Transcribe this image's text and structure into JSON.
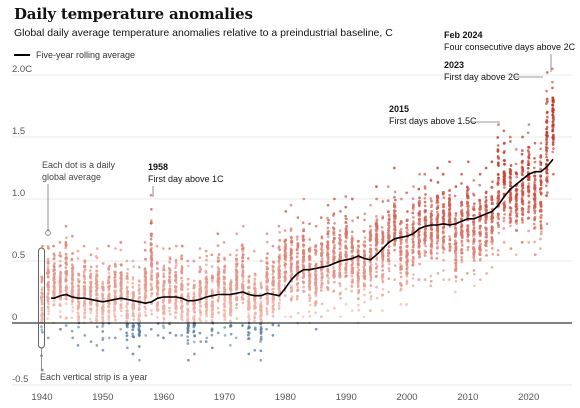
{
  "title": "Daily temperature anomalies",
  "subtitle": "Global daily average temperature anomalies relative to a preindustrial baseline, C",
  "legend": {
    "line_label": "Five-year rolling average",
    "line_color": "#000000"
  },
  "colors": {
    "warm": "#c0392b",
    "warm_light": "#f2b9ad",
    "cool": "#5a7fa6",
    "zero_line": "#000000",
    "grid": "#e2e2e2"
  },
  "chart_data": {
    "type": "scatter",
    "x_range": [
      1940,
      2024
    ],
    "ylim": [
      -0.5,
      2.1
    ],
    "y_ticks": [
      -0.5,
      0,
      0.5,
      1.0,
      1.5,
      2.0
    ],
    "y_tick_labels": [
      "-0.5",
      "0",
      "0.5",
      "1.0",
      "1.5",
      "2.0C"
    ],
    "x_ticks": [
      1940,
      1950,
      1960,
      1970,
      1980,
      1990,
      2000,
      2010,
      2020
    ],
    "x_tick_labels": [
      "1940",
      "1950",
      "1960",
      "1970",
      "1980",
      "1990",
      "2000",
      "2010",
      "2020"
    ],
    "grid": true,
    "legend_position": "top-left",
    "yearly_daily_ranges": [
      {
        "year": 1940,
        "min": -0.38,
        "max": 0.62,
        "mean": 0.15
      },
      {
        "year": 1941,
        "min": -0.12,
        "max": 0.75,
        "mean": 0.25
      },
      {
        "year": 1942,
        "min": 0.0,
        "max": 0.62,
        "mean": 0.22
      },
      {
        "year": 1943,
        "min": -0.05,
        "max": 0.65,
        "mean": 0.2
      },
      {
        "year": 1944,
        "min": -0.02,
        "max": 0.78,
        "mean": 0.3
      },
      {
        "year": 1945,
        "min": -0.12,
        "max": 0.7,
        "mean": 0.22
      },
      {
        "year": 1946,
        "min": -0.18,
        "max": 0.58,
        "mean": 0.15
      },
      {
        "year": 1947,
        "min": -0.1,
        "max": 0.62,
        "mean": 0.2
      },
      {
        "year": 1948,
        "min": -0.15,
        "max": 0.55,
        "mean": 0.16
      },
      {
        "year": 1949,
        "min": -0.18,
        "max": 0.6,
        "mean": 0.14
      },
      {
        "year": 1950,
        "min": -0.22,
        "max": 0.48,
        "mean": 0.08
      },
      {
        "year": 1951,
        "min": -0.12,
        "max": 0.62,
        "mean": 0.2
      },
      {
        "year": 1952,
        "min": -0.12,
        "max": 0.6,
        "mean": 0.2
      },
      {
        "year": 1953,
        "min": -0.05,
        "max": 0.65,
        "mean": 0.24
      },
      {
        "year": 1954,
        "min": -0.2,
        "max": 0.5,
        "mean": 0.1
      },
      {
        "year": 1955,
        "min": -0.25,
        "max": 0.5,
        "mean": 0.08
      },
      {
        "year": 1956,
        "min": -0.3,
        "max": 0.45,
        "mean": 0.05
      },
      {
        "year": 1957,
        "min": -0.1,
        "max": 0.65,
        "mean": 0.22
      },
      {
        "year": 1958,
        "min": -0.05,
        "max": 1.03,
        "mean": 0.3
      },
      {
        "year": 1959,
        "min": -0.1,
        "max": 0.62,
        "mean": 0.22
      },
      {
        "year": 1960,
        "min": -0.12,
        "max": 0.6,
        "mean": 0.2
      },
      {
        "year": 1961,
        "min": -0.08,
        "max": 0.6,
        "mean": 0.24
      },
      {
        "year": 1962,
        "min": -0.1,
        "max": 0.62,
        "mean": 0.22
      },
      {
        "year": 1963,
        "min": -0.1,
        "max": 0.62,
        "mean": 0.24
      },
      {
        "year": 1964,
        "min": -0.3,
        "max": 0.5,
        "mean": 0.08
      },
      {
        "year": 1965,
        "min": -0.25,
        "max": 0.5,
        "mean": 0.12
      },
      {
        "year": 1966,
        "min": -0.15,
        "max": 0.6,
        "mean": 0.2
      },
      {
        "year": 1967,
        "min": -0.15,
        "max": 0.58,
        "mean": 0.2
      },
      {
        "year": 1968,
        "min": -0.2,
        "max": 0.55,
        "mean": 0.18
      },
      {
        "year": 1969,
        "min": -0.08,
        "max": 0.72,
        "mean": 0.28
      },
      {
        "year": 1970,
        "min": -0.1,
        "max": 0.65,
        "mean": 0.24
      },
      {
        "year": 1971,
        "min": -0.18,
        "max": 0.55,
        "mean": 0.16
      },
      {
        "year": 1972,
        "min": -0.12,
        "max": 0.72,
        "mean": 0.24
      },
      {
        "year": 1973,
        "min": -0.02,
        "max": 0.78,
        "mean": 0.32
      },
      {
        "year": 1974,
        "min": -0.25,
        "max": 0.52,
        "mean": 0.14
      },
      {
        "year": 1975,
        "min": -0.22,
        "max": 0.58,
        "mean": 0.16
      },
      {
        "year": 1976,
        "min": -0.3,
        "max": 0.5,
        "mean": 0.1
      },
      {
        "year": 1977,
        "min": -0.05,
        "max": 0.72,
        "mean": 0.32
      },
      {
        "year": 1978,
        "min": -0.1,
        "max": 0.62,
        "mean": 0.26
      },
      {
        "year": 1979,
        "min": -0.02,
        "max": 0.78,
        "mean": 0.34
      },
      {
        "year": 1980,
        "min": 0.05,
        "max": 0.9,
        "mean": 0.42
      },
      {
        "year": 1981,
        "min": 0.05,
        "max": 0.95,
        "mean": 0.45
      },
      {
        "year": 1982,
        "min": 0.0,
        "max": 0.85,
        "mean": 0.36
      },
      {
        "year": 1983,
        "min": 0.05,
        "max": 1.0,
        "mean": 0.5
      },
      {
        "year": 1984,
        "min": 0.0,
        "max": 0.8,
        "mean": 0.38
      },
      {
        "year": 1985,
        "min": -0.05,
        "max": 0.78,
        "mean": 0.35
      },
      {
        "year": 1986,
        "min": 0.05,
        "max": 0.85,
        "mean": 0.42
      },
      {
        "year": 1987,
        "min": 0.1,
        "max": 0.95,
        "mean": 0.5
      },
      {
        "year": 1988,
        "min": 0.12,
        "max": 1.0,
        "mean": 0.55
      },
      {
        "year": 1989,
        "min": 0.05,
        "max": 0.9,
        "mean": 0.46
      },
      {
        "year": 1990,
        "min": 0.15,
        "max": 1.02,
        "mean": 0.6
      },
      {
        "year": 1991,
        "min": 0.1,
        "max": 1.0,
        "mean": 0.56
      },
      {
        "year": 1992,
        "min": 0.0,
        "max": 0.85,
        "mean": 0.42
      },
      {
        "year": 1993,
        "min": 0.05,
        "max": 0.88,
        "mean": 0.46
      },
      {
        "year": 1994,
        "min": 0.1,
        "max": 0.95,
        "mean": 0.52
      },
      {
        "year": 1995,
        "min": 0.2,
        "max": 1.1,
        "mean": 0.62
      },
      {
        "year": 1996,
        "min": 0.1,
        "max": 0.98,
        "mean": 0.55
      },
      {
        "year": 1997,
        "min": 0.25,
        "max": 1.1,
        "mean": 0.68
      },
      {
        "year": 1998,
        "min": 0.35,
        "max": 1.25,
        "mean": 0.82
      },
      {
        "year": 1999,
        "min": 0.15,
        "max": 1.0,
        "mean": 0.6
      },
      {
        "year": 2000,
        "min": 0.15,
        "max": 1.05,
        "mean": 0.62
      },
      {
        "year": 2001,
        "min": 0.3,
        "max": 1.1,
        "mean": 0.72
      },
      {
        "year": 2002,
        "min": 0.35,
        "max": 1.2,
        "mean": 0.78
      },
      {
        "year": 2003,
        "min": 0.35,
        "max": 1.2,
        "mean": 0.78
      },
      {
        "year": 2004,
        "min": 0.3,
        "max": 1.15,
        "mean": 0.74
      },
      {
        "year": 2005,
        "min": 0.4,
        "max": 1.25,
        "mean": 0.82
      },
      {
        "year": 2006,
        "min": 0.35,
        "max": 1.2,
        "mean": 0.78
      },
      {
        "year": 2007,
        "min": 0.35,
        "max": 1.3,
        "mean": 0.8
      },
      {
        "year": 2008,
        "min": 0.25,
        "max": 1.1,
        "mean": 0.68
      },
      {
        "year": 2009,
        "min": 0.35,
        "max": 1.2,
        "mean": 0.78
      },
      {
        "year": 2010,
        "min": 0.4,
        "max": 1.3,
        "mean": 0.86
      },
      {
        "year": 2011,
        "min": 0.3,
        "max": 1.15,
        "mean": 0.74
      },
      {
        "year": 2012,
        "min": 0.35,
        "max": 1.2,
        "mean": 0.78
      },
      {
        "year": 2013,
        "min": 0.4,
        "max": 1.25,
        "mean": 0.82
      },
      {
        "year": 2014,
        "min": 0.45,
        "max": 1.3,
        "mean": 0.88
      },
      {
        "year": 2015,
        "min": 0.55,
        "max": 1.6,
        "mean": 1.02
      },
      {
        "year": 2016,
        "min": 0.65,
        "max": 1.55,
        "mean": 1.1
      },
      {
        "year": 2017,
        "min": 0.6,
        "max": 1.5,
        "mean": 1.02
      },
      {
        "year": 2018,
        "min": 0.55,
        "max": 1.4,
        "mean": 0.96
      },
      {
        "year": 2019,
        "min": 0.65,
        "max": 1.5,
        "mean": 1.08
      },
      {
        "year": 2020,
        "min": 0.65,
        "max": 1.6,
        "mean": 1.1
      },
      {
        "year": 2021,
        "min": 0.55,
        "max": 1.45,
        "mean": 0.98
      },
      {
        "year": 2022,
        "min": 0.6,
        "max": 1.45,
        "mean": 1.0
      },
      {
        "year": 2023,
        "min": 0.8,
        "max": 2.02,
        "mean": 1.3
      },
      {
        "year": 2024,
        "min": 1.2,
        "max": 2.05,
        "mean": 1.55
      }
    ],
    "rolling_average": {
      "name": "Five-year rolling average",
      "x": [
        1941.5,
        1942,
        1943,
        1944,
        1945,
        1946,
        1947,
        1948,
        1949,
        1950,
        1951,
        1952,
        1953,
        1954,
        1955,
        1956,
        1957,
        1958,
        1959,
        1960,
        1961,
        1962,
        1963,
        1964,
        1965,
        1966,
        1967,
        1968,
        1969,
        1970,
        1971,
        1972,
        1973,
        1974,
        1975,
        1976,
        1977,
        1978,
        1979,
        1980,
        1981,
        1982,
        1983,
        1984,
        1985,
        1986,
        1987,
        1988,
        1989,
        1990,
        1991,
        1992,
        1993,
        1994,
        1995,
        1996,
        1997,
        1998,
        1999,
        2000,
        2001,
        2002,
        2003,
        2004,
        2005,
        2006,
        2007,
        2008,
        2009,
        2010,
        2011,
        2012,
        2013,
        2014,
        2015,
        2016,
        2017,
        2018,
        2019,
        2020,
        2021,
        2022,
        2023,
        2024
      ],
      "y": [
        0.2,
        0.2,
        0.22,
        0.23,
        0.21,
        0.2,
        0.2,
        0.19,
        0.18,
        0.17,
        0.18,
        0.19,
        0.2,
        0.19,
        0.18,
        0.17,
        0.16,
        0.17,
        0.2,
        0.21,
        0.21,
        0.21,
        0.2,
        0.18,
        0.18,
        0.19,
        0.21,
        0.22,
        0.23,
        0.23,
        0.23,
        0.24,
        0.25,
        0.23,
        0.22,
        0.22,
        0.24,
        0.23,
        0.22,
        0.28,
        0.35,
        0.4,
        0.43,
        0.43,
        0.44,
        0.45,
        0.46,
        0.48,
        0.5,
        0.51,
        0.52,
        0.54,
        0.52,
        0.51,
        0.55,
        0.6,
        0.65,
        0.68,
        0.69,
        0.7,
        0.72,
        0.76,
        0.78,
        0.79,
        0.79,
        0.8,
        0.79,
        0.8,
        0.82,
        0.84,
        0.84,
        0.86,
        0.88,
        0.9,
        0.95,
        1.02,
        1.08,
        1.12,
        1.16,
        1.2,
        1.22,
        1.22,
        1.26,
        1.32
      ]
    }
  },
  "annotations": {
    "dot_note_1": "Each dot is a daily",
    "dot_note_2": "global average",
    "strip_note": "Each vertical strip is a year",
    "y1958_year": "1958",
    "y1958_text": "First day above 1C",
    "y2015_year": "2015",
    "y2015_text": "First days above 1.5C",
    "y2023_year": "2023",
    "y2023_text": "First day above 2C",
    "y2024_year": "Feb 2024",
    "y2024_text": "Four consecutive days above 2C"
  }
}
